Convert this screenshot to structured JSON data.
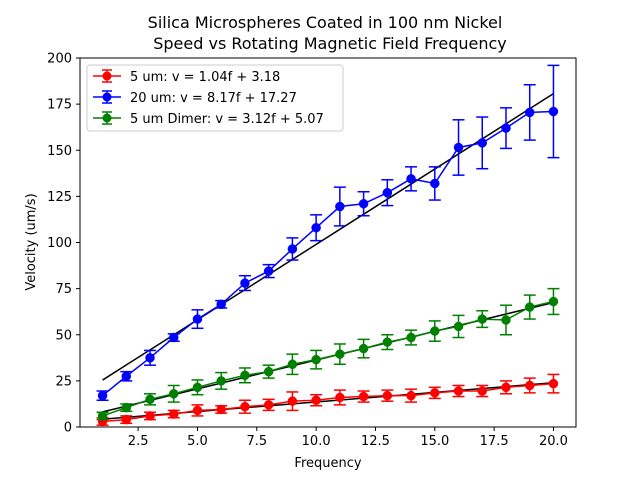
{
  "chart_data": {
    "type": "line",
    "title": "Silica Microspheres Coated in 100 nm Nickel\nSpeed vs Rotating Magnetic Field Frequency",
    "xlabel": "Frequency",
    "ylabel": "Velocity (um/s)",
    "xlim": [
      0.05,
      20.95
    ],
    "ylim": [
      0,
      200
    ],
    "xticks": [
      2.5,
      5.0,
      7.5,
      10.0,
      12.5,
      15.0,
      17.5,
      20.0
    ],
    "xtick_labels": [
      "2.5",
      "5.0",
      "7.5",
      "10.0",
      "12.5",
      "15.0",
      "17.5",
      "20.0"
    ],
    "yticks": [
      0,
      25,
      50,
      75,
      100,
      125,
      150,
      175,
      200
    ],
    "ytick_labels": [
      "0",
      "25",
      "50",
      "75",
      "100",
      "125",
      "150",
      "175",
      "200"
    ],
    "x": [
      1,
      2,
      3,
      4,
      5,
      6,
      7,
      8,
      9,
      10,
      11,
      12,
      13,
      14,
      15,
      16,
      17,
      18,
      19,
      20
    ],
    "legend_position": "upper-left",
    "series": [
      {
        "name": "5 um: v = 1.04f + 3.18",
        "color": "#ff0000",
        "values": [
          3.0,
          4.0,
          6.0,
          7.0,
          9.0,
          9.5,
          11.0,
          12.0,
          14.0,
          14.5,
          16.0,
          16.5,
          17.0,
          17.0,
          18.5,
          19.5,
          19.5,
          21.5,
          22.5,
          23.5
        ],
        "errors": [
          2.0,
          2.0,
          2.0,
          2.0,
          3.0,
          2.0,
          3.5,
          3.0,
          5.0,
          3.0,
          4.0,
          3.0,
          3.0,
          3.5,
          3.0,
          3.0,
          3.0,
          3.5,
          4.0,
          5.0
        ],
        "fit": {
          "slope": 1.04,
          "intercept": 3.18
        }
      },
      {
        "name": "20 um: v = 8.17f + 17.27",
        "color": "#0000ff",
        "values": [
          17.0,
          27.5,
          37.5,
          48.5,
          58.5,
          66.5,
          78.0,
          84.5,
          96.5,
          108.0,
          119.5,
          121.0,
          127.0,
          134.5,
          132.0,
          151.5,
          154.0,
          162.0,
          170.5,
          171.0
        ],
        "errors": [
          2.5,
          2.5,
          4.0,
          2.0,
          5.0,
          2.0,
          4.0,
          3.5,
          6.0,
          7.0,
          10.5,
          6.5,
          7.0,
          6.5,
          9.0,
          15.0,
          14.0,
          11.0,
          15.0,
          25.0
        ],
        "fit": {
          "slope": 8.17,
          "intercept": 17.27
        }
      },
      {
        "name": "5 um Dimer: v = 3.12f + 5.07",
        "color": "#008000",
        "values": [
          6.0,
          10.5,
          15.0,
          18.0,
          21.5,
          25.0,
          28.0,
          30.0,
          34.0,
          36.5,
          39.5,
          42.5,
          46.0,
          48.5,
          52.0,
          54.5,
          58.5,
          58.0,
          65.0,
          68.0
        ],
        "errors": [
          2.0,
          2.0,
          3.0,
          4.5,
          4.0,
          4.5,
          4.0,
          3.5,
          5.5,
          5.0,
          5.5,
          5.0,
          4.0,
          4.0,
          5.5,
          6.0,
          4.5,
          8.0,
          6.5,
          7.0
        ],
        "fit": {
          "slope": 3.12,
          "intercept": 5.07
        }
      }
    ]
  }
}
